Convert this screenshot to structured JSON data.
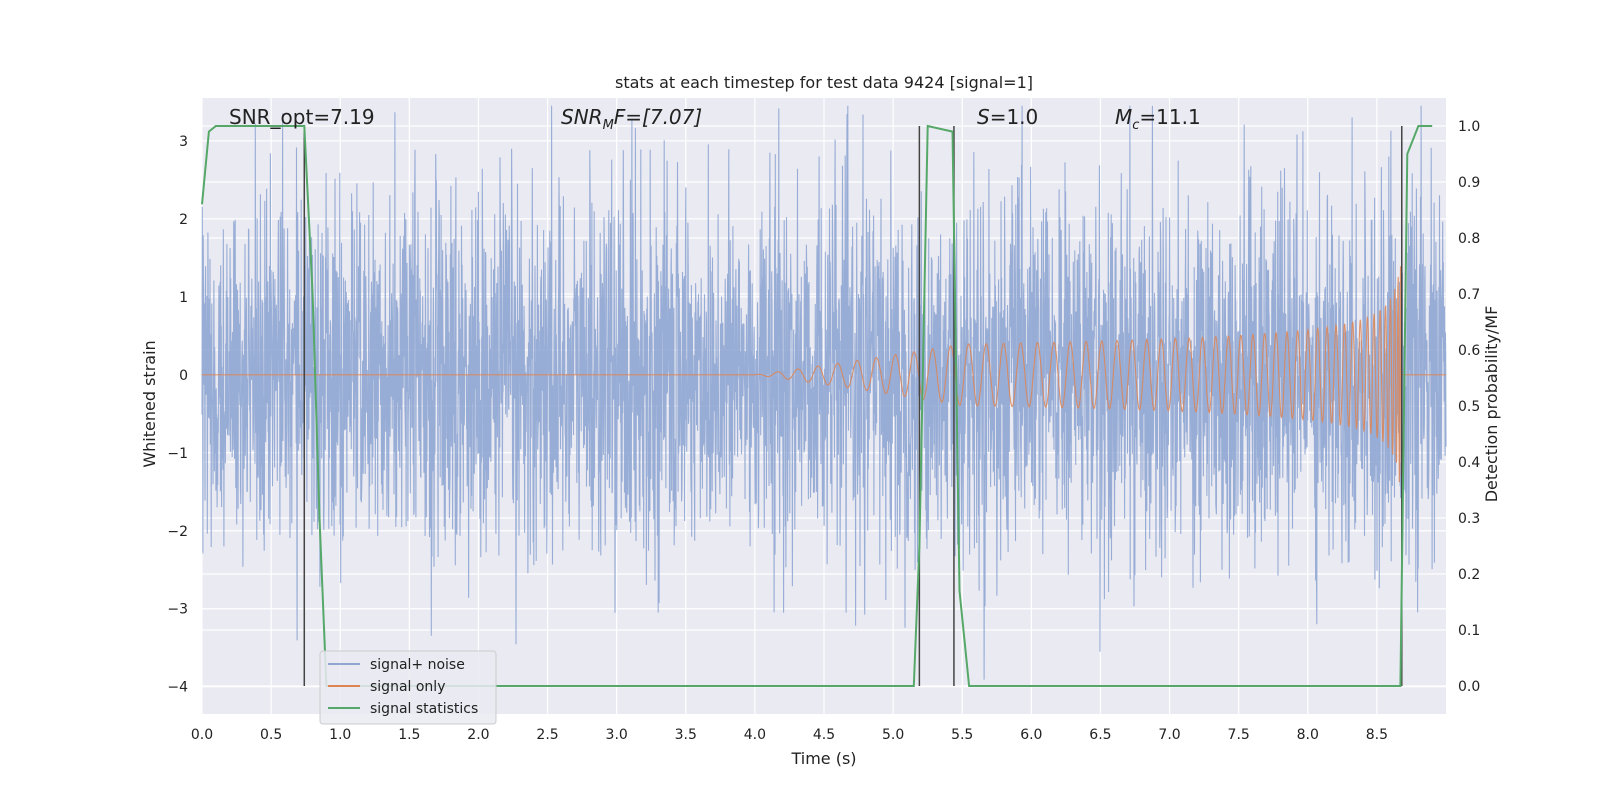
{
  "chart_data": {
    "type": "line",
    "title": "stats at each timestep for test data 9424 [signal=1]",
    "xlabel": "Time (s)",
    "ylabel": "Whitened strain",
    "ylabel_right": "Detection probability/MF",
    "xlim": [
      0,
      9.0
    ],
    "ylim_left": [
      -4.35,
      3.55
    ],
    "ylim_right": [
      -0.05,
      1.05
    ],
    "x_ticks": [
      "0.0",
      "0.5",
      "1.0",
      "1.5",
      "2.0",
      "2.5",
      "3.0",
      "3.5",
      "4.0",
      "4.5",
      "5.0",
      "5.5",
      "6.0",
      "6.5",
      "7.0",
      "7.5",
      "8.0",
      "8.5"
    ],
    "x_tick_values": [
      0,
      0.5,
      1,
      1.5,
      2,
      2.5,
      3,
      3.5,
      4,
      4.5,
      5,
      5.5,
      6,
      6.5,
      7,
      7.5,
      8,
      8.5
    ],
    "y_left_ticks": [
      "−4",
      "−3",
      "−2",
      "−1",
      "0",
      "1",
      "2",
      "3"
    ],
    "y_left_tick_values": [
      -4,
      -3,
      -2,
      -1,
      0,
      1,
      2,
      3
    ],
    "y_right_ticks": [
      "0.0",
      "0.1",
      "0.2",
      "0.3",
      "0.4",
      "0.5",
      "0.6",
      "0.7",
      "0.8",
      "0.9",
      "1.0"
    ],
    "y_right_tick_values": [
      0,
      0.1,
      0.2,
      0.3,
      0.4,
      0.5,
      0.6,
      0.7,
      0.8,
      0.9,
      1.0
    ],
    "grid": true,
    "legend_position": "lower-left",
    "annotations": {
      "snr_opt": "SNR_opt=7.19",
      "snr_mf_main": "SNR",
      "snr_mf_sub": "M",
      "snr_mf_rest": "F=[7.07]",
      "s_italic": "S",
      "s_rest": "=1.0",
      "mc_main": "M",
      "mc_sub": "c",
      "mc_rest": "=11.1"
    },
    "series": [
      {
        "name": "signal+ noise",
        "color": "#8fa6d3",
        "axis": "left",
        "description_points": {
          "x_range": [
            0,
            9.0
          ],
          "approx_std": 1.15,
          "approx_max": 3.45,
          "approx_min": -4.0
        }
      },
      {
        "name": "signal only",
        "color": "#dd8452",
        "axis": "left",
        "chirp": {
          "t_start": 4.0,
          "t_merge": 8.68,
          "peak_amplitude": 1.4
        }
      },
      {
        "name": "signal statistics",
        "color": "#55a868",
        "axis": "right",
        "x": [
          0,
          0.05,
          0.1,
          0.7,
          0.74,
          0.8,
          0.85,
          0.9,
          5.15,
          5.19,
          5.25,
          5.43,
          5.48,
          5.55,
          5.7,
          8.08,
          8.2,
          8.67,
          8.72,
          8.8,
          8.9
        ],
        "y": [
          0.86,
          0.99,
          1.0,
          1.0,
          1.0,
          0.7,
          0.3,
          0.0,
          0.0,
          0.25,
          1.0,
          0.99,
          0.17,
          0.0,
          0.0,
          0.0,
          0.0,
          0.0,
          0.95,
          1.0,
          1.0
        ]
      }
    ],
    "vertical_markers": [
      0.74,
      5.19,
      5.44,
      8.68
    ],
    "marker_color": "#444444"
  }
}
